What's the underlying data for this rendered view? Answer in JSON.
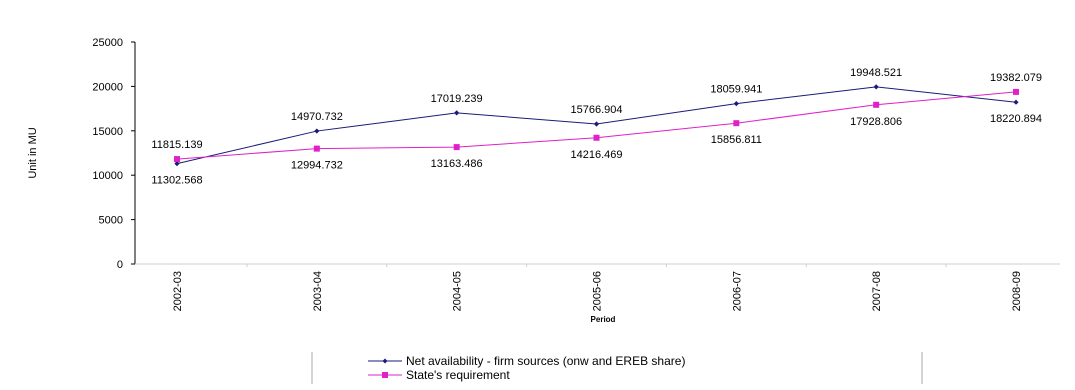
{
  "chart_data": {
    "type": "line",
    "title": "",
    "xlabel": "Period",
    "ylabel": "Unit in MU",
    "ylim": [
      0,
      25000
    ],
    "yticks": [
      "0",
      "5000",
      "10000",
      "15000",
      "20000",
      "25000"
    ],
    "categories": [
      "2002-03",
      "2003-04",
      "2004-05",
      "2005-06",
      "2006-07",
      "2007-08",
      "2008-09"
    ],
    "grid": false,
    "legend_position": "bottom",
    "series": [
      {
        "name": "Net availability - firm sources (onw and EREB share)",
        "color": "#1a1a7a",
        "marker": "diamond",
        "values": [
          11302.568,
          14970.732,
          17019.239,
          15766.904,
          18059.941,
          19948.521,
          18220.894
        ],
        "labels": [
          "11302.568",
          "14970.732",
          "17019.239",
          "15766.904",
          "18059.941",
          "19948.521",
          "18220.894"
        ]
      },
      {
        "name": "State's requirement",
        "color": "#e020c8",
        "marker": "square",
        "values": [
          11815.139,
          12994.732,
          13163.486,
          14216.469,
          15856.811,
          17928.806,
          19382.079
        ],
        "labels": [
          "11815.139",
          "12994.732",
          "13163.486",
          "14216.469",
          "15856.811",
          "17928.806",
          "19382.079"
        ]
      }
    ]
  }
}
